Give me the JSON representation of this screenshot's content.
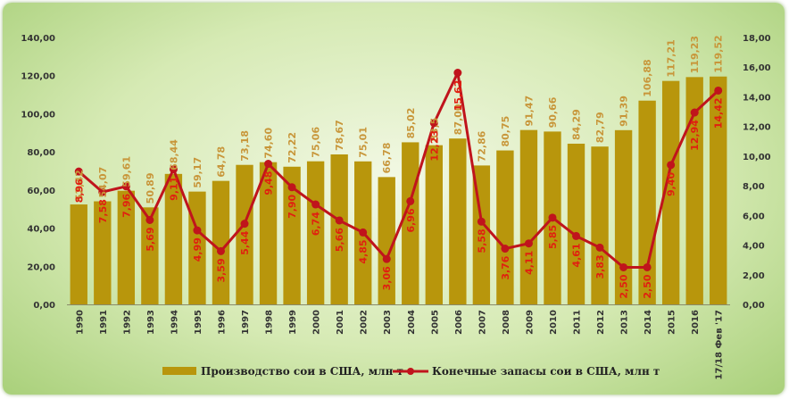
{
  "chart_data": {
    "type": "bar",
    "categories": [
      "1990",
      "1991",
      "1992",
      "1993",
      "1994",
      "1995",
      "1996",
      "1997",
      "1998",
      "1999",
      "2000",
      "2001",
      "2002",
      "2003",
      "2004",
      "2005",
      "2006",
      "2007",
      "2008",
      "2009",
      "2010",
      "2011",
      "2012",
      "2013",
      "2014",
      "2015",
      "2016",
      "17/18 Фев '17"
    ],
    "series": [
      {
        "name": "Производство сои в США, млн т",
        "type": "bar",
        "axis": "left",
        "color": "#b8960c",
        "values": [
          52.42,
          54.07,
          59.61,
          50.89,
          68.44,
          59.17,
          64.78,
          73.18,
          74.6,
          72.22,
          75.06,
          78.67,
          75.01,
          66.78,
          85.02,
          83.5,
          87.0,
          72.86,
          80.75,
          91.47,
          90.66,
          84.29,
          82.79,
          91.39,
          106.88,
          117.21,
          119.23,
          119.52
        ],
        "labels": [
          "52,42",
          "54,07",
          "59,61",
          "50,89",
          "68,44",
          "59,17",
          "64,78",
          "73,18",
          "74,60",
          "72,22",
          "75,06",
          "78,67",
          "75,01",
          "66,78",
          "85,02",
          "83,5",
          "87,00",
          "72,86",
          "80,75",
          "91,47",
          "90,66",
          "84,29",
          "82,79",
          "91,39",
          "106,88",
          "117,21",
          "119,23",
          "119,52"
        ]
      },
      {
        "name": "Конечные запасы сои в США, млн т",
        "type": "line",
        "axis": "right",
        "color": "#c0141c",
        "values": [
          8.96,
          7.58,
          7.96,
          5.69,
          9.11,
          4.99,
          3.59,
          5.44,
          9.48,
          7.9,
          6.74,
          5.66,
          4.85,
          3.06,
          6.96,
          12.23,
          15.62,
          5.58,
          3.76,
          4.11,
          5.85,
          4.61,
          3.83,
          2.5,
          2.5,
          9.4,
          12.94,
          14.42
        ],
        "labels": [
          "8,96",
          "7,58",
          "7,96",
          "5,69",
          "9,11",
          "4,99",
          "3,59",
          "5,44",
          "9,48",
          "7,90",
          "6,74",
          "5,66",
          "4,85",
          "3,06",
          "6,96",
          "12,23",
          "15,62",
          "5,58",
          "3,76",
          "4,11",
          "5,85",
          "4,61",
          "3,83",
          "2,50",
          "2,50",
          "9,40",
          "12,94",
          "14,42"
        ]
      }
    ],
    "y_left": {
      "min": 0,
      "max": 140,
      "ticks": [
        "0,00",
        "20,00",
        "40,00",
        "60,00",
        "80,00",
        "100,00",
        "120,00",
        "140,00"
      ]
    },
    "y_right": {
      "min": 0,
      "max": 18,
      "ticks": [
        "0,00",
        "2,00",
        "4,00",
        "6,00",
        "8,00",
        "10,00",
        "12,00",
        "14,00",
        "16,00",
        "18,00"
      ]
    },
    "grid": false,
    "legend_position": "bottom"
  }
}
